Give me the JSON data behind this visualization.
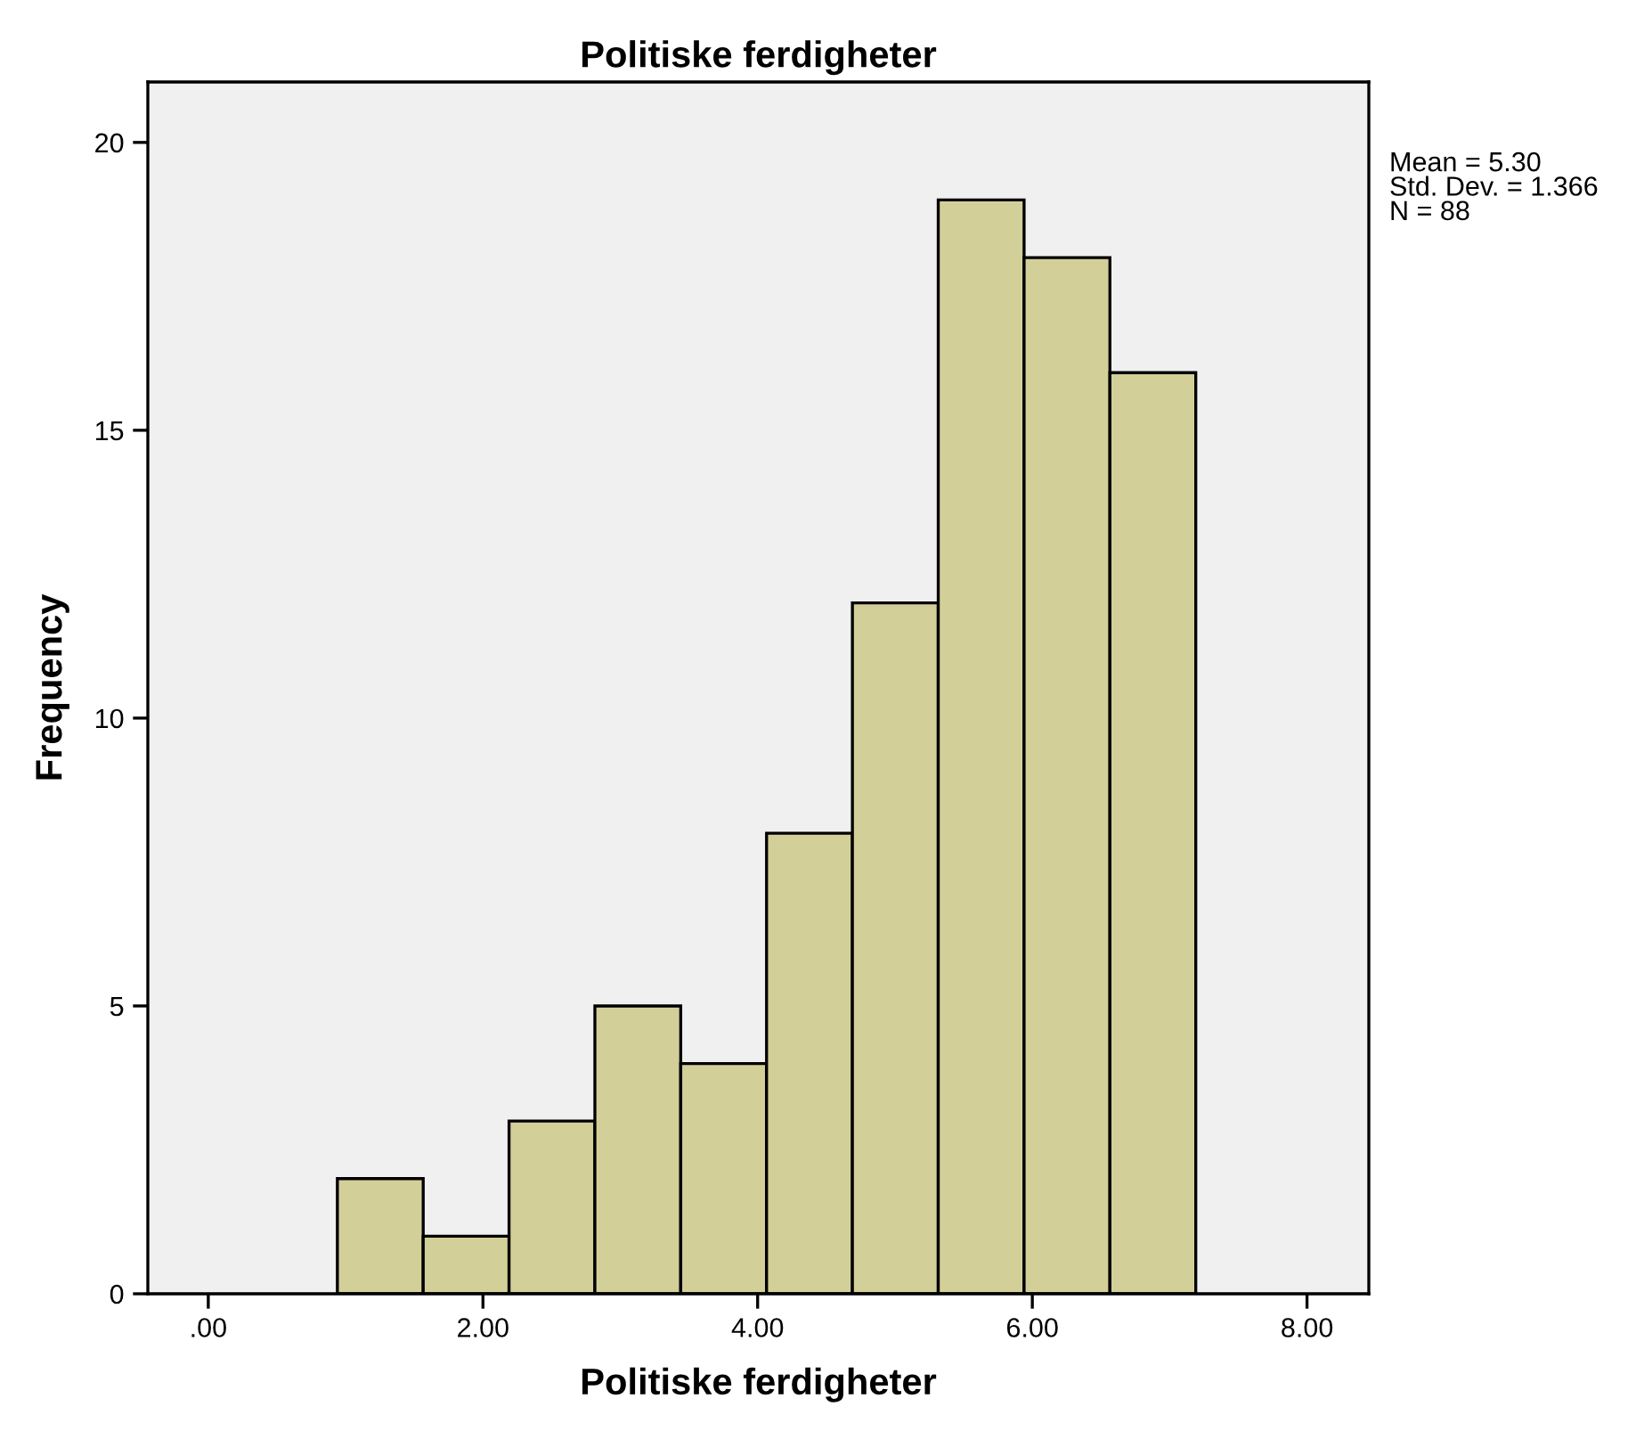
{
  "chart_data": {
    "type": "histogram",
    "title": "Politiske ferdigheter",
    "xlabel": "Politiske ferdigheter",
    "ylabel": "Frequency",
    "bins": [
      0.94,
      1.565,
      2.19,
      2.815,
      3.44,
      4.065,
      4.69,
      5.315,
      5.94,
      6.565,
      7.19
    ],
    "values": [
      2,
      1,
      3,
      5,
      4,
      8,
      12,
      19,
      18,
      16
    ],
    "color": "#d3cf99",
    "xlim": [
      -0.44,
      8.45
    ],
    "ylim": [
      0,
      21.05
    ],
    "xticks": [
      {
        "value": 0,
        "label": ".00"
      },
      {
        "value": 2,
        "label": "2.00"
      },
      {
        "value": 4,
        "label": "4.00"
      },
      {
        "value": 6,
        "label": "6.00"
      },
      {
        "value": 8,
        "label": "8.00"
      }
    ],
    "yticks": [
      0,
      5,
      10,
      15,
      20
    ],
    "annotations": [
      "Mean = 5.30\nStd. Dev. = 1.366\nN = 88"
    ],
    "grid": false,
    "legend": false
  }
}
